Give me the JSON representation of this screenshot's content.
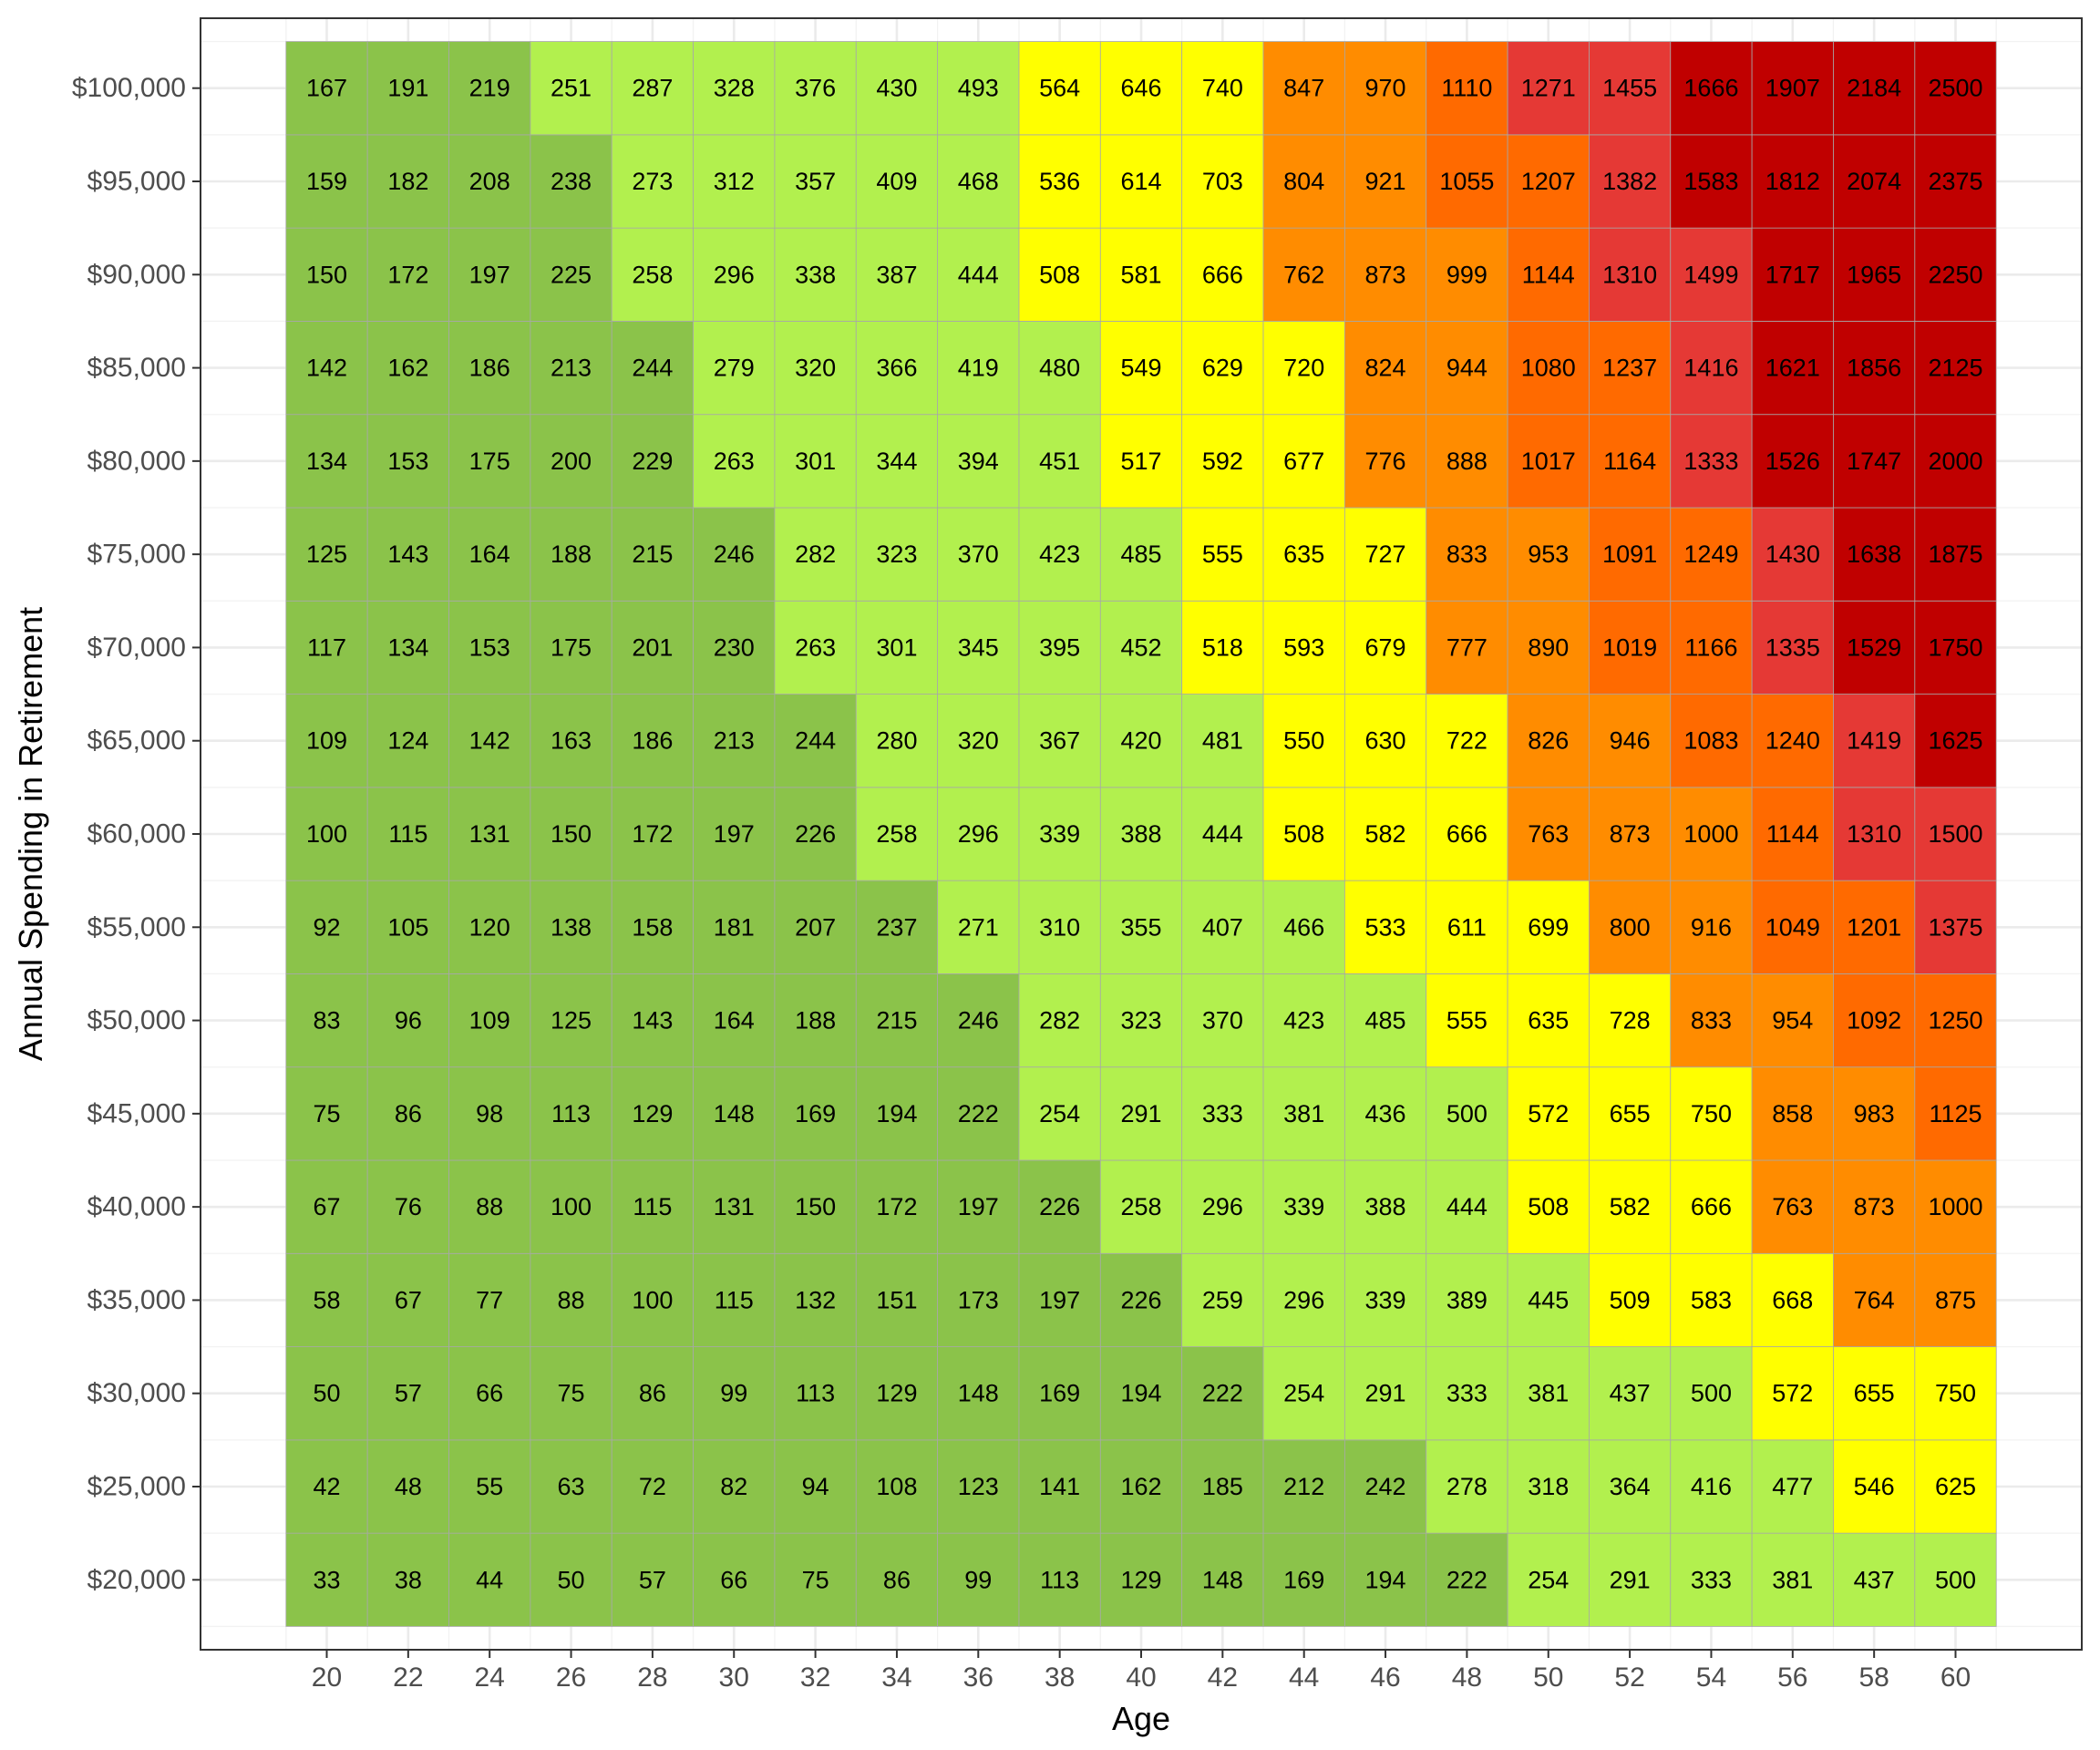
{
  "chart_data": {
    "type": "heatmap",
    "title": "",
    "xlabel": "Age",
    "ylabel": "Annual Spending in Retirement",
    "x": [
      20,
      22,
      24,
      26,
      28,
      30,
      32,
      34,
      36,
      38,
      40,
      42,
      44,
      46,
      48,
      50,
      52,
      54,
      56,
      58,
      60
    ],
    "x_tick_labels": [
      "20",
      "22",
      "24",
      "26",
      "28",
      "30",
      "32",
      "34",
      "36",
      "38",
      "40",
      "42",
      "44",
      "46",
      "48",
      "50",
      "52",
      "54",
      "56",
      "58",
      "60"
    ],
    "y": [
      20000,
      25000,
      30000,
      35000,
      40000,
      45000,
      50000,
      55000,
      60000,
      65000,
      70000,
      75000,
      80000,
      85000,
      90000,
      95000,
      100000
    ],
    "y_tick_labels": [
      "$20,000",
      "$25,000",
      "$30,000",
      "$35,000",
      "$40,000",
      "$45,000",
      "$50,000",
      "$55,000",
      "$60,000",
      "$65,000",
      "$70,000",
      "$75,000",
      "$80,000",
      "$85,000",
      "$90,000",
      "$95,000",
      "$100,000"
    ],
    "xlim": [
      16.9,
      63.1
    ],
    "ylim": [
      16250,
      103750
    ],
    "grid": true,
    "values": [
      [
        33,
        38,
        44,
        50,
        57,
        66,
        75,
        86,
        99,
        113,
        129,
        148,
        169,
        194,
        222,
        254,
        291,
        333,
        381,
        437,
        500
      ],
      [
        42,
        48,
        55,
        63,
        72,
        82,
        94,
        108,
        123,
        141,
        162,
        185,
        212,
        242,
        278,
        318,
        364,
        416,
        477,
        546,
        625
      ],
      [
        50,
        57,
        66,
        75,
        86,
        99,
        113,
        129,
        148,
        169,
        194,
        222,
        254,
        291,
        333,
        381,
        437,
        500,
        572,
        655,
        750
      ],
      [
        58,
        67,
        77,
        88,
        100,
        115,
        132,
        151,
        173,
        197,
        226,
        259,
        296,
        339,
        389,
        445,
        509,
        583,
        668,
        764,
        875
      ],
      [
        67,
        76,
        88,
        100,
        115,
        131,
        150,
        172,
        197,
        226,
        258,
        296,
        339,
        388,
        444,
        508,
        582,
        666,
        763,
        873,
        1000
      ],
      [
        75,
        86,
        98,
        113,
        129,
        148,
        169,
        194,
        222,
        254,
        291,
        333,
        381,
        436,
        500,
        572,
        655,
        750,
        858,
        983,
        1125
      ],
      [
        83,
        96,
        109,
        125,
        143,
        164,
        188,
        215,
        246,
        282,
        323,
        370,
        423,
        485,
        555,
        635,
        728,
        833,
        954,
        1092,
        1250
      ],
      [
        92,
        105,
        120,
        138,
        158,
        181,
        207,
        237,
        271,
        310,
        355,
        407,
        466,
        533,
        611,
        699,
        800,
        916,
        1049,
        1201,
        1375
      ],
      [
        100,
        115,
        131,
        150,
        172,
        197,
        226,
        258,
        296,
        339,
        388,
        444,
        508,
        582,
        666,
        763,
        873,
        1000,
        1144,
        1310,
        1500
      ],
      [
        109,
        124,
        142,
        163,
        186,
        213,
        244,
        280,
        320,
        367,
        420,
        481,
        550,
        630,
        722,
        826,
        946,
        1083,
        1240,
        1419,
        1625
      ],
      [
        117,
        134,
        153,
        175,
        201,
        230,
        263,
        301,
        345,
        395,
        452,
        518,
        593,
        679,
        777,
        890,
        1019,
        1166,
        1335,
        1529,
        1750
      ],
      [
        125,
        143,
        164,
        188,
        215,
        246,
        282,
        323,
        370,
        423,
        485,
        555,
        635,
        727,
        833,
        953,
        1091,
        1249,
        1430,
        1638,
        1875
      ],
      [
        134,
        153,
        175,
        200,
        229,
        263,
        301,
        344,
        394,
        451,
        517,
        592,
        677,
        776,
        888,
        1017,
        1164,
        1333,
        1526,
        1747,
        2000
      ],
      [
        142,
        162,
        186,
        213,
        244,
        279,
        320,
        366,
        419,
        480,
        549,
        629,
        720,
        824,
        944,
        1080,
        1237,
        1416,
        1621,
        1856,
        2125
      ],
      [
        150,
        172,
        197,
        225,
        258,
        296,
        338,
        387,
        444,
        508,
        581,
        666,
        762,
        873,
        999,
        1144,
        1310,
        1499,
        1717,
        1965,
        2250
      ],
      [
        159,
        182,
        208,
        238,
        273,
        312,
        357,
        409,
        468,
        536,
        614,
        703,
        804,
        921,
        1055,
        1207,
        1382,
        1583,
        1812,
        2074,
        2375
      ],
      [
        167,
        191,
        219,
        251,
        287,
        328,
        376,
        430,
        493,
        564,
        646,
        740,
        847,
        970,
        1110,
        1271,
        1455,
        1666,
        1907,
        2184,
        2500
      ]
    ],
    "color_bins": [
      {
        "max": 250,
        "color": "#8bc34a"
      },
      {
        "max": 500,
        "color": "#b2f04e"
      },
      {
        "max": 750,
        "color": "#ffff00"
      },
      {
        "max": 1000,
        "color": "#ff8c00"
      },
      {
        "max": 1250,
        "color": "#ff6a00"
      },
      {
        "max": 1500,
        "color": "#e53935"
      },
      {
        "max": 100000,
        "color": "#c00000"
      }
    ]
  }
}
